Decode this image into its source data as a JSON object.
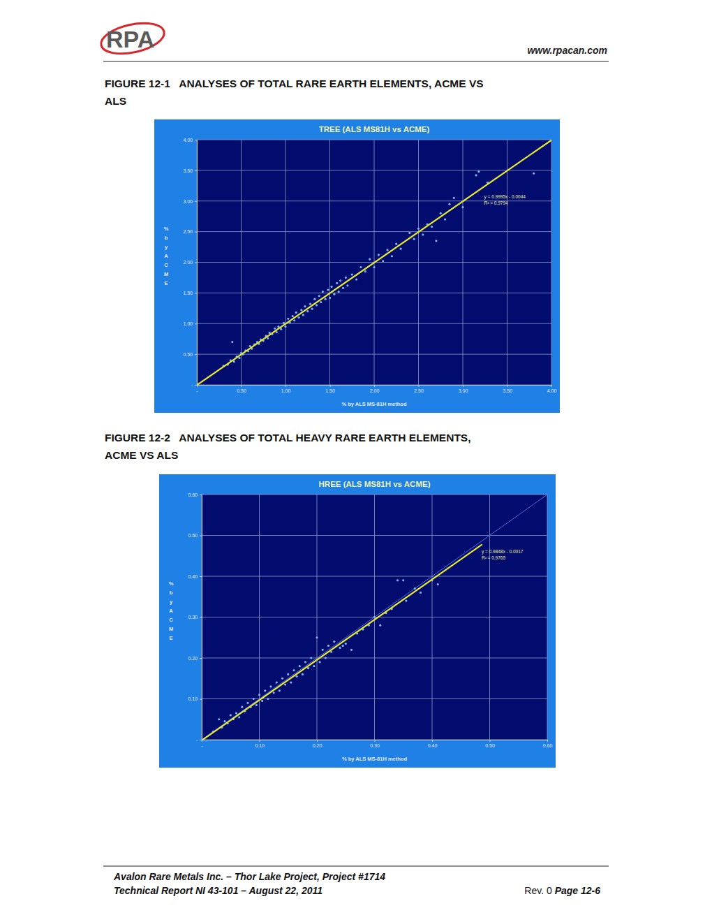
{
  "header": {
    "logo": "RPA",
    "url": "www.rpacan.com"
  },
  "captions": [
    [
      "FIGURE 12-1   ANALYSES OF TOTAL RARE EARTH ELEMENTS, ACME VS",
      "ALS"
    ],
    [
      "FIGURE 12-2   ANALYSES OF TOTAL HEAVY RARE EARTH ELEMENTS,",
      "ACME VS ALS"
    ]
  ],
  "chart_data": [
    {
      "type": "scatter",
      "title": "TREE (ALS MS81H vs ACME)",
      "x_label": "% by ALS MS-81H method",
      "y_label": "% by ACME",
      "xlim": [
        0,
        4
      ],
      "ylim": [
        0,
        4
      ],
      "xticks": [
        {
          "value": 0,
          "label": "-"
        },
        {
          "value": 0.5,
          "label": "0.50"
        },
        {
          "value": 1,
          "label": "1.00"
        },
        {
          "value": 1.5,
          "label": "1.50"
        },
        {
          "value": 2,
          "label": "2.00"
        },
        {
          "value": 2.5,
          "label": "2.50"
        },
        {
          "value": 3,
          "label": "3.00"
        },
        {
          "value": 3.5,
          "label": "3.50"
        },
        {
          "value": 4,
          "label": "4.00"
        }
      ],
      "yticks": [
        {
          "value": 0,
          "label": "-"
        },
        {
          "value": 0.5,
          "label": "0.50"
        },
        {
          "value": 1,
          "label": "1.00"
        },
        {
          "value": 1.5,
          "label": "1.50"
        },
        {
          "value": 2,
          "label": "2.00"
        },
        {
          "value": 2.5,
          "label": "2.50"
        },
        {
          "value": 3,
          "label": "3.00"
        },
        {
          "value": 3.5,
          "label": "3.50"
        },
        {
          "value": 4,
          "label": "4.00"
        }
      ],
      "grid": true,
      "color": "#7fb2ea",
      "marker": "circle",
      "x": [
        0.3,
        0.35,
        0.38,
        0.4,
        0.42,
        0.45,
        0.48,
        0.5,
        0.52,
        0.55,
        0.58,
        0.6,
        0.62,
        0.65,
        0.68,
        0.7,
        0.72,
        0.75,
        0.78,
        0.8,
        0.82,
        0.85,
        0.88,
        0.9,
        0.92,
        0.95,
        0.98,
        1.0,
        1.03,
        1.05,
        1.08,
        1.1,
        1.12,
        1.15,
        1.18,
        1.2,
        1.22,
        1.25,
        1.28,
        1.3,
        1.33,
        1.35,
        1.38,
        1.4,
        1.42,
        1.45,
        1.48,
        1.5,
        1.52,
        1.55,
        1.58,
        1.6,
        1.62,
        1.65,
        1.68,
        1.7,
        1.75,
        1.8,
        1.85,
        1.9,
        1.95,
        2.0,
        2.05,
        2.1,
        2.15,
        2.2,
        2.25,
        2.3,
        2.4,
        2.45,
        2.5,
        2.55,
        2.6,
        2.65,
        2.7,
        2.75,
        2.8,
        2.85,
        2.9,
        3.0,
        3.15,
        3.18,
        3.28,
        3.8
      ],
      "values": [
        0.31,
        0.33,
        0.4,
        0.7,
        0.38,
        0.46,
        0.44,
        0.52,
        0.5,
        0.56,
        0.55,
        0.63,
        0.59,
        0.66,
        0.7,
        0.67,
        0.74,
        0.72,
        0.8,
        0.76,
        0.85,
        0.83,
        0.92,
        0.86,
        0.95,
        0.91,
        1.01,
        0.95,
        1.08,
        1.02,
        1.12,
        1.05,
        1.18,
        1.1,
        1.22,
        1.14,
        1.28,
        1.2,
        1.32,
        1.24,
        1.4,
        1.3,
        1.45,
        1.35,
        1.52,
        1.4,
        1.55,
        1.42,
        1.6,
        1.48,
        1.66,
        1.52,
        1.7,
        1.58,
        1.75,
        1.62,
        1.8,
        1.72,
        1.92,
        1.85,
        2.05,
        1.92,
        2.12,
        2.02,
        2.2,
        2.1,
        2.3,
        2.22,
        2.48,
        2.38,
        2.55,
        2.45,
        2.62,
        2.58,
        2.35,
        2.8,
        2.7,
        2.95,
        3.05,
        2.9,
        3.42,
        3.48,
        3.3,
        3.45
      ],
      "trendline": {
        "slope": 0.9995,
        "intercept": -0.0044,
        "x_range": [
          0,
          4
        ],
        "color": "#e8e830"
      },
      "annotations": [
        "y = 0.9995x - 0.0044",
        "R² = 0.9794"
      ]
    },
    {
      "type": "scatter",
      "title": "HREE (ALS MS81H vs ACME)",
      "x_label": "% by ALS MS-81H method",
      "y_label": "% by ACME",
      "xlim": [
        0,
        0.6
      ],
      "ylim": [
        0,
        0.6
      ],
      "xticks": [
        {
          "value": 0,
          "label": "-"
        },
        {
          "value": 0.1,
          "label": "0.10"
        },
        {
          "value": 0.2,
          "label": "0.20"
        },
        {
          "value": 0.3,
          "label": "0.30"
        },
        {
          "value": 0.4,
          "label": "0.40"
        },
        {
          "value": 0.5,
          "label": "0.50"
        },
        {
          "value": 0.6,
          "label": "0.60"
        }
      ],
      "yticks": [
        {
          "value": 0,
          "label": "-"
        },
        {
          "value": 0.1,
          "label": "0.10"
        },
        {
          "value": 0.2,
          "label": "0.20"
        },
        {
          "value": 0.3,
          "label": "0.30"
        },
        {
          "value": 0.4,
          "label": "0.40"
        },
        {
          "value": 0.5,
          "label": "0.50"
        },
        {
          "value": 0.6,
          "label": "0.60"
        }
      ],
      "grid": true,
      "color": "#7fb2ea",
      "marker": "circle",
      "x": [
        0.02,
        0.03,
        0.035,
        0.04,
        0.045,
        0.05,
        0.055,
        0.06,
        0.065,
        0.07,
        0.075,
        0.08,
        0.085,
        0.09,
        0.095,
        0.1,
        0.105,
        0.11,
        0.115,
        0.12,
        0.125,
        0.13,
        0.135,
        0.14,
        0.145,
        0.15,
        0.155,
        0.16,
        0.165,
        0.17,
        0.175,
        0.18,
        0.185,
        0.19,
        0.195,
        0.2,
        0.205,
        0.21,
        0.215,
        0.22,
        0.225,
        0.23,
        0.24,
        0.245,
        0.25,
        0.26,
        0.27,
        0.28,
        0.29,
        0.3,
        0.31,
        0.32,
        0.33,
        0.34,
        0.35,
        0.355,
        0.37,
        0.38,
        0.4,
        0.41
      ],
      "values": [
        0.02,
        0.05,
        0.03,
        0.045,
        0.04,
        0.06,
        0.05,
        0.065,
        0.055,
        0.08,
        0.07,
        0.09,
        0.08,
        0.1,
        0.085,
        0.11,
        0.095,
        0.12,
        0.1,
        0.13,
        0.115,
        0.14,
        0.12,
        0.15,
        0.135,
        0.16,
        0.14,
        0.17,
        0.155,
        0.18,
        0.16,
        0.19,
        0.175,
        0.2,
        0.18,
        0.25,
        0.19,
        0.22,
        0.2,
        0.23,
        0.215,
        0.24,
        0.225,
        0.23,
        0.235,
        0.22,
        0.26,
        0.27,
        0.28,
        0.3,
        0.28,
        0.31,
        0.32,
        0.39,
        0.39,
        0.34,
        0.37,
        0.36,
        0.39,
        0.38
      ],
      "trendline": {
        "slope": 0.9848,
        "intercept": -0.0017,
        "x_range": [
          0,
          0.487
        ],
        "color": "#e8e830"
      },
      "reference_line": {
        "slope": 1,
        "intercept": 0,
        "color": "#4a6fe0"
      },
      "annotations": [
        "y = 0.9848x - 0.0017",
        "R² = 0.9765"
      ]
    }
  ],
  "footer": {
    "lines": [
      "Avalon Rare Metals Inc. – Thor Lake Project, Project #1714",
      "Technical Report NI 43-101 – August 22, 2011"
    ],
    "revision": "Rev. 0",
    "page": "Page 12-6"
  }
}
